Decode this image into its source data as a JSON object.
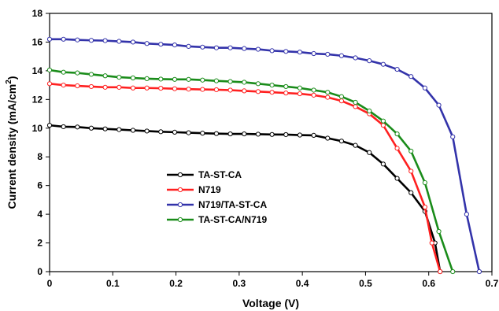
{
  "chart_data": {
    "type": "line",
    "xlabel": "Voltage (V)",
    "ylabel_main": "Current density (mA/cm",
    "ylabel_sup": "2",
    "ylabel_close": ")",
    "xlim": [
      0,
      0.7
    ],
    "ylim": [
      0,
      18
    ],
    "x_ticks": [
      0,
      0.1,
      0.2,
      0.3,
      0.4,
      0.5,
      0.6,
      0.7
    ],
    "y_ticks": [
      0,
      2,
      4,
      6,
      8,
      10,
      12,
      14,
      16,
      18
    ],
    "x_tick_labels": [
      "0",
      "0.1",
      "0.2",
      "0.3",
      "0.4",
      "0.5",
      "0.6",
      "0.7"
    ],
    "y_tick_labels": [
      "0",
      "2",
      "4",
      "6",
      "8",
      "10",
      "12",
      "14",
      "16",
      "18"
    ],
    "grid": false,
    "legend_position": "center-left",
    "series": [
      {
        "name": "TA-ST-CA",
        "color": "#000000",
        "x": [
          0,
          0.022,
          0.044,
          0.066,
          0.088,
          0.11,
          0.132,
          0.154,
          0.176,
          0.198,
          0.22,
          0.242,
          0.264,
          0.286,
          0.308,
          0.33,
          0.352,
          0.374,
          0.396,
          0.418,
          0.44,
          0.462,
          0.484,
          0.506,
          0.528,
          0.55,
          0.572,
          0.594,
          0.61,
          0.618
        ],
        "y": [
          10.2,
          10.1,
          10.08,
          10.0,
          9.95,
          9.9,
          9.85,
          9.8,
          9.75,
          9.72,
          9.68,
          9.65,
          9.62,
          9.6,
          9.6,
          9.58,
          9.56,
          9.55,
          9.52,
          9.5,
          9.3,
          9.1,
          8.8,
          8.3,
          7.5,
          6.5,
          5.5,
          4.2,
          2.0,
          0
        ]
      },
      {
        "name": "N719",
        "color": "#ff2020",
        "x": [
          0,
          0.022,
          0.044,
          0.066,
          0.088,
          0.11,
          0.132,
          0.154,
          0.176,
          0.198,
          0.22,
          0.242,
          0.264,
          0.286,
          0.308,
          0.33,
          0.352,
          0.374,
          0.396,
          0.418,
          0.44,
          0.462,
          0.484,
          0.506,
          0.528,
          0.55,
          0.572,
          0.594,
          0.605,
          0.618
        ],
        "y": [
          13.1,
          13.0,
          12.95,
          12.9,
          12.85,
          12.85,
          12.8,
          12.8,
          12.78,
          12.75,
          12.72,
          12.7,
          12.68,
          12.65,
          12.6,
          12.55,
          12.5,
          12.45,
          12.4,
          12.3,
          12.15,
          11.9,
          11.5,
          11.0,
          10.2,
          8.6,
          7.0,
          4.5,
          2.0,
          0
        ]
      },
      {
        "name": "N719/TA-ST-CA",
        "color": "#3333aa",
        "x": [
          0,
          0.022,
          0.044,
          0.066,
          0.088,
          0.11,
          0.132,
          0.154,
          0.176,
          0.198,
          0.22,
          0.242,
          0.264,
          0.286,
          0.308,
          0.33,
          0.352,
          0.374,
          0.396,
          0.418,
          0.44,
          0.462,
          0.484,
          0.506,
          0.528,
          0.55,
          0.572,
          0.594,
          0.616,
          0.638,
          0.66,
          0.68
        ],
        "y": [
          16.2,
          16.2,
          16.15,
          16.12,
          16.1,
          16.05,
          16.0,
          15.9,
          15.85,
          15.8,
          15.7,
          15.65,
          15.6,
          15.6,
          15.55,
          15.5,
          15.4,
          15.35,
          15.3,
          15.2,
          15.15,
          15.05,
          14.9,
          14.7,
          14.45,
          14.1,
          13.6,
          12.8,
          11.6,
          9.4,
          4.0,
          0
        ]
      },
      {
        "name": "TA-ST-CA/N719",
        "color": "#1a8c1a",
        "x": [
          0,
          0.022,
          0.044,
          0.066,
          0.088,
          0.11,
          0.132,
          0.154,
          0.176,
          0.198,
          0.22,
          0.242,
          0.264,
          0.286,
          0.308,
          0.33,
          0.352,
          0.374,
          0.396,
          0.418,
          0.44,
          0.462,
          0.484,
          0.506,
          0.528,
          0.55,
          0.572,
          0.594,
          0.616,
          0.638
        ],
        "y": [
          14.05,
          13.9,
          13.85,
          13.75,
          13.65,
          13.55,
          13.5,
          13.45,
          13.42,
          13.4,
          13.4,
          13.35,
          13.3,
          13.25,
          13.2,
          13.1,
          13.0,
          12.9,
          12.8,
          12.65,
          12.5,
          12.2,
          11.8,
          11.2,
          10.5,
          9.6,
          8.4,
          6.2,
          2.8,
          0
        ]
      }
    ]
  }
}
